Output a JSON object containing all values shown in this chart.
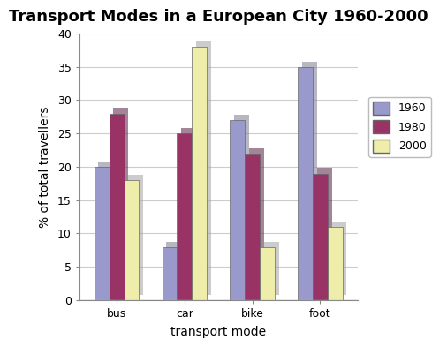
{
  "title": "Transport Modes in a European City 1960-2000",
  "categories": [
    "bus",
    "car",
    "bike",
    "foot"
  ],
  "years": [
    "1960",
    "1980",
    "2000"
  ],
  "values": {
    "1960": [
      20,
      8,
      27,
      35
    ],
    "1980": [
      28,
      25,
      22,
      19
    ],
    "2000": [
      18,
      38,
      8,
      11
    ]
  },
  "colors": {
    "1960": "#9999cc",
    "1980": "#993366",
    "2000": "#eeeeaa"
  },
  "shadow_colors": {
    "1960": "#888899",
    "1980": "#663355",
    "2000": "#aaaaaa"
  },
  "xlabel": "transport mode",
  "ylabel": "% of total travellers",
  "ylim": [
    0,
    40
  ],
  "yticks": [
    0,
    5,
    10,
    15,
    20,
    25,
    30,
    35,
    40
  ],
  "title_fontsize": 13,
  "label_fontsize": 10,
  "tick_fontsize": 9,
  "bar_width": 0.22,
  "background_color": "#ffffff",
  "plot_bg_color": "#ffffff",
  "grid_color": "#cccccc",
  "floor_color": "#aaaaaa"
}
